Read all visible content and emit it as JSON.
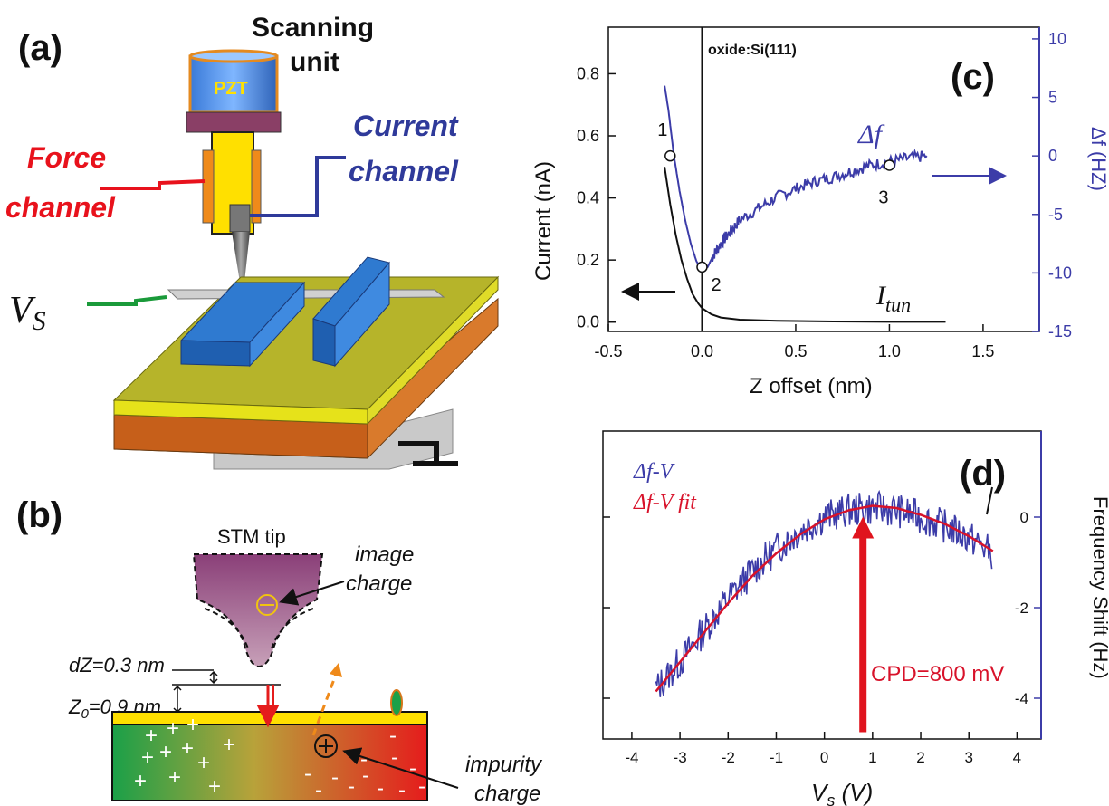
{
  "panel_a": {
    "label": "(a)",
    "scanning_unit": [
      "Scanning",
      "unit"
    ],
    "pzt": "PZT",
    "force_channel": [
      "Force",
      "channel"
    ],
    "current_channel": [
      "Current",
      "channel"
    ],
    "vs_base": "V",
    "vs_sub": "S",
    "colors": {
      "force": "#e8121c",
      "current": "#2f3a9a",
      "vs_wire": "#1a9a3a"
    }
  },
  "panel_b": {
    "label": "(b)",
    "stm_tip": "STM tip",
    "image_charge": [
      "image",
      "charge"
    ],
    "dz": "dZ=0.3 nm",
    "z0_base": "Z",
    "z0_sub": "0",
    "z0_rest": "=0.9 nm",
    "impurity_charge": [
      "impurity",
      "charge"
    ],
    "plus_marks": [
      "+",
      "+",
      "+",
      "+",
      "+",
      "+",
      "+",
      "+",
      "+",
      "+",
      "+"
    ],
    "minus_marks": [
      "-",
      "-",
      "-",
      "-",
      "-",
      "-",
      "-",
      "-",
      "-",
      "-",
      "-",
      "-",
      "-"
    ],
    "minus_charge_symbol": "⊖",
    "plus_charge_symbol": "⊕"
  },
  "chart_data": [
    {
      "type": "line",
      "panel_label": "(c)",
      "xlabel": "Z offset (nm)",
      "ylabel": "Current (nA)",
      "y2label": "Δf (HZ)",
      "xlim": [
        -0.5,
        1.8
      ],
      "ylim": [
        -0.03,
        0.95
      ],
      "y2lim": [
        -15,
        11
      ],
      "x_ticks": [
        "-0.5",
        "0.0",
        "0.5",
        "1.0",
        "1.5"
      ],
      "y_ticks": [
        "0.0",
        "0.2",
        "0.4",
        "0.6",
        "0.8"
      ],
      "y2_ticks": [
        "10",
        "5",
        "0",
        "-5",
        "-10",
        "-15"
      ],
      "annotation_top": "oxide:Si(111)",
      "vline_x": 0,
      "series": [
        {
          "name": "Δf",
          "axis": "right",
          "color": "#3c3ca8",
          "x": [
            -0.2,
            -0.18,
            -0.15,
            -0.12,
            -0.09,
            -0.06,
            -0.03,
            0.0,
            0.03,
            0.06,
            0.1,
            0.15,
            0.2,
            0.3,
            0.4,
            0.5,
            0.6,
            0.7,
            0.8,
            0.9,
            1.0,
            1.1,
            1.2
          ],
          "y": [
            6,
            4,
            0,
            -3,
            -5.5,
            -7.5,
            -9,
            -9.8,
            -9.5,
            -8.5,
            -7.5,
            -6.5,
            -5.5,
            -4.5,
            -3.5,
            -2.8,
            -2.2,
            -1.8,
            -1.3,
            -0.8,
            -0.5,
            -0.2,
            0
          ]
        },
        {
          "name": "I_tun",
          "axis": "left",
          "color": "#111111",
          "x": [
            -0.2,
            -0.17,
            -0.14,
            -0.11,
            -0.08,
            -0.05,
            -0.02,
            0.0,
            0.05,
            0.1,
            0.2,
            0.4,
            0.7,
            1.0,
            1.3
          ],
          "y": [
            0.5,
            0.38,
            0.28,
            0.2,
            0.14,
            0.09,
            0.06,
            0.045,
            0.025,
            0.015,
            0.008,
            0.004,
            0.002,
            0.001,
            0.001
          ]
        }
      ],
      "markers": [
        {
          "label": "1",
          "x": -0.17,
          "y2": 0
        },
        {
          "label": "2",
          "x": 0.0,
          "y2": -9.5
        },
        {
          "label": "3",
          "x": 1.0,
          "y2": -0.8
        }
      ],
      "series_labels": {
        "df": "Δf",
        "itun_base": "I",
        "itun_sub": "tun"
      }
    },
    {
      "type": "line",
      "panel_label": "(d)",
      "xlabel_base": "V",
      "xlabel_sub": "s",
      "xlabel_rest": " (V)",
      "ylabel": "Frequency Shift (Hz)",
      "xlim": [
        -4.6,
        4.5
      ],
      "ylim": [
        -4.9,
        1.9
      ],
      "x_ticks": [
        "-4",
        "-3",
        "-2",
        "-1",
        "0",
        "1",
        "2",
        "3",
        "4"
      ],
      "y_ticks": [
        "0",
        "-2",
        "-4"
      ],
      "legend": [
        {
          "label": "Δf-V",
          "color": "#3c3ca8"
        },
        {
          "label": "Δf-V  fit",
          "color": "#d8122a"
        }
      ],
      "series": [
        {
          "name": "Δf-V",
          "color": "#3c3ca8",
          "noisy": true,
          "x": [
            -3.5,
            -3.0,
            -2.5,
            -2.0,
            -1.5,
            -1.0,
            -0.5,
            0.0,
            0.5,
            1.0,
            1.5,
            2.0,
            2.5,
            3.0,
            3.5
          ],
          "y": [
            -3.8,
            -3.2,
            -2.5,
            -1.8,
            -1.2,
            -0.7,
            -0.3,
            0.0,
            0.15,
            0.2,
            0.15,
            0.0,
            -0.2,
            -0.45,
            -0.8
          ]
        },
        {
          "name": "Δf-V fit",
          "color": "#d8122a",
          "x": [
            -3.5,
            -3.0,
            -2.5,
            -2.0,
            -1.5,
            -1.0,
            -0.5,
            0.0,
            0.5,
            1.0,
            1.5,
            2.0,
            2.5,
            3.0,
            3.5
          ],
          "y": [
            -3.85,
            -3.2,
            -2.55,
            -1.9,
            -1.3,
            -0.8,
            -0.38,
            -0.05,
            0.15,
            0.25,
            0.2,
            0.05,
            -0.15,
            -0.42,
            -0.75
          ]
        }
      ],
      "cpd_label": "CPD=800 mV",
      "cpd_x": 0.8
    }
  ]
}
